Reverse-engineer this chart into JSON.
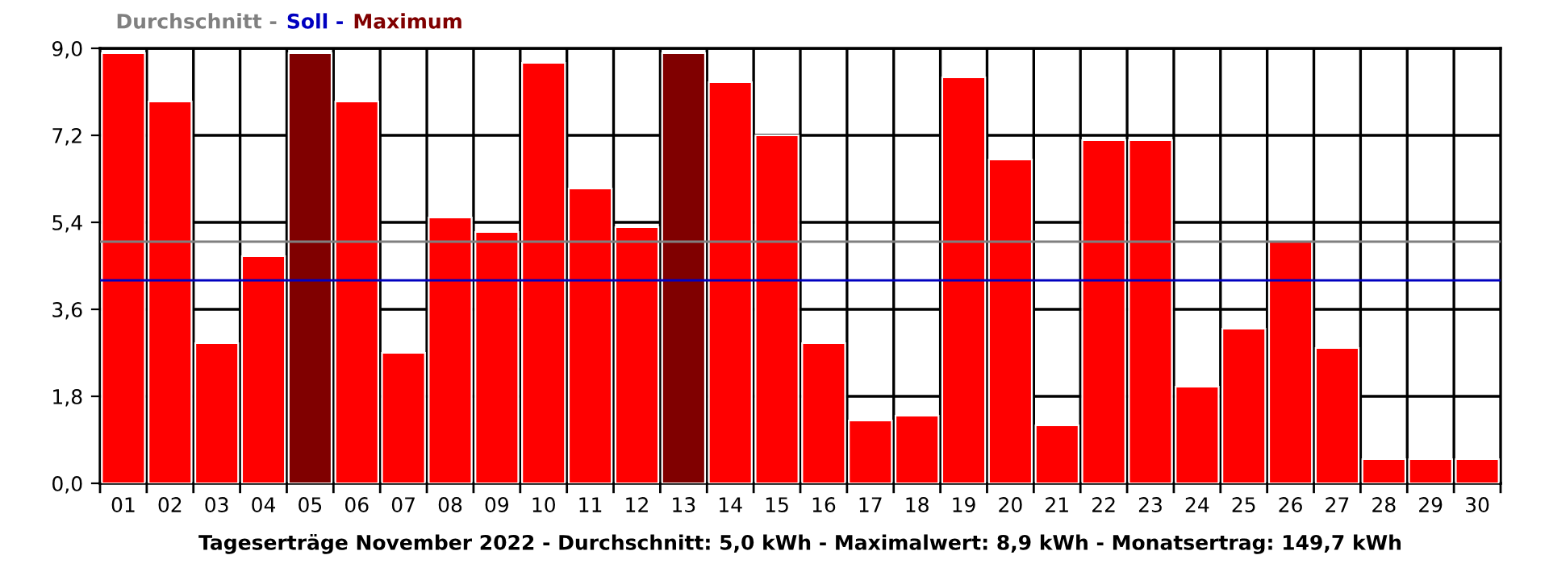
{
  "chart_data": {
    "type": "bar",
    "xlabel": "Tageserträge November 2022 - Durchschnitt: 5,0 kWh - Maximalwert: 8,9 kWh - Monatsertrag: 149,7 kWh",
    "categories": [
      "01",
      "02",
      "03",
      "04",
      "05",
      "06",
      "07",
      "08",
      "09",
      "10",
      "11",
      "12",
      "13",
      "14",
      "15",
      "16",
      "17",
      "18",
      "19",
      "20",
      "21",
      "22",
      "23",
      "24",
      "25",
      "26",
      "27",
      "28",
      "29",
      "30"
    ],
    "series": [
      {
        "color": "#ff0000",
        "values": [
          8.9,
          7.9,
          2.9,
          4.7,
          null,
          7.9,
          2.7,
          5.5,
          5.2,
          8.7,
          6.1,
          5.3,
          null,
          8.3,
          7.2,
          2.9,
          1.3,
          1.4,
          8.4,
          6.7,
          1.2,
          7.1,
          7.1,
          2.0,
          3.2,
          5.0,
          2.8,
          0.5,
          0.5,
          0.5
        ]
      },
      {
        "name": "Maximum",
        "color": "#800000",
        "values": [
          null,
          null,
          null,
          null,
          8.9,
          null,
          null,
          null,
          null,
          null,
          null,
          null,
          8.9,
          null,
          null,
          null,
          null,
          null,
          null,
          null,
          null,
          null,
          null,
          null,
          null,
          null,
          null,
          null,
          null,
          null
        ]
      }
    ],
    "ref_lines": [
      {
        "axis": "y",
        "value": 5.0,
        "label": "Durchschnitt -",
        "color": "#808080"
      },
      {
        "axis": "y",
        "value": 4.2,
        "label": "Soll -",
        "color": "#0000c0"
      }
    ],
    "ylim": [
      0,
      9
    ],
    "yticks": [
      {
        "value": 0,
        "label": "0,0"
      },
      {
        "value": 1.8,
        "label": "1,8"
      },
      {
        "value": 3.6,
        "label": "3,6"
      },
      {
        "value": 5.4,
        "label": "5,4"
      },
      {
        "value": 7.2,
        "label": "7,2"
      },
      {
        "value": 9,
        "label": "9,0"
      }
    ],
    "grid": true,
    "legend": "top left"
  }
}
